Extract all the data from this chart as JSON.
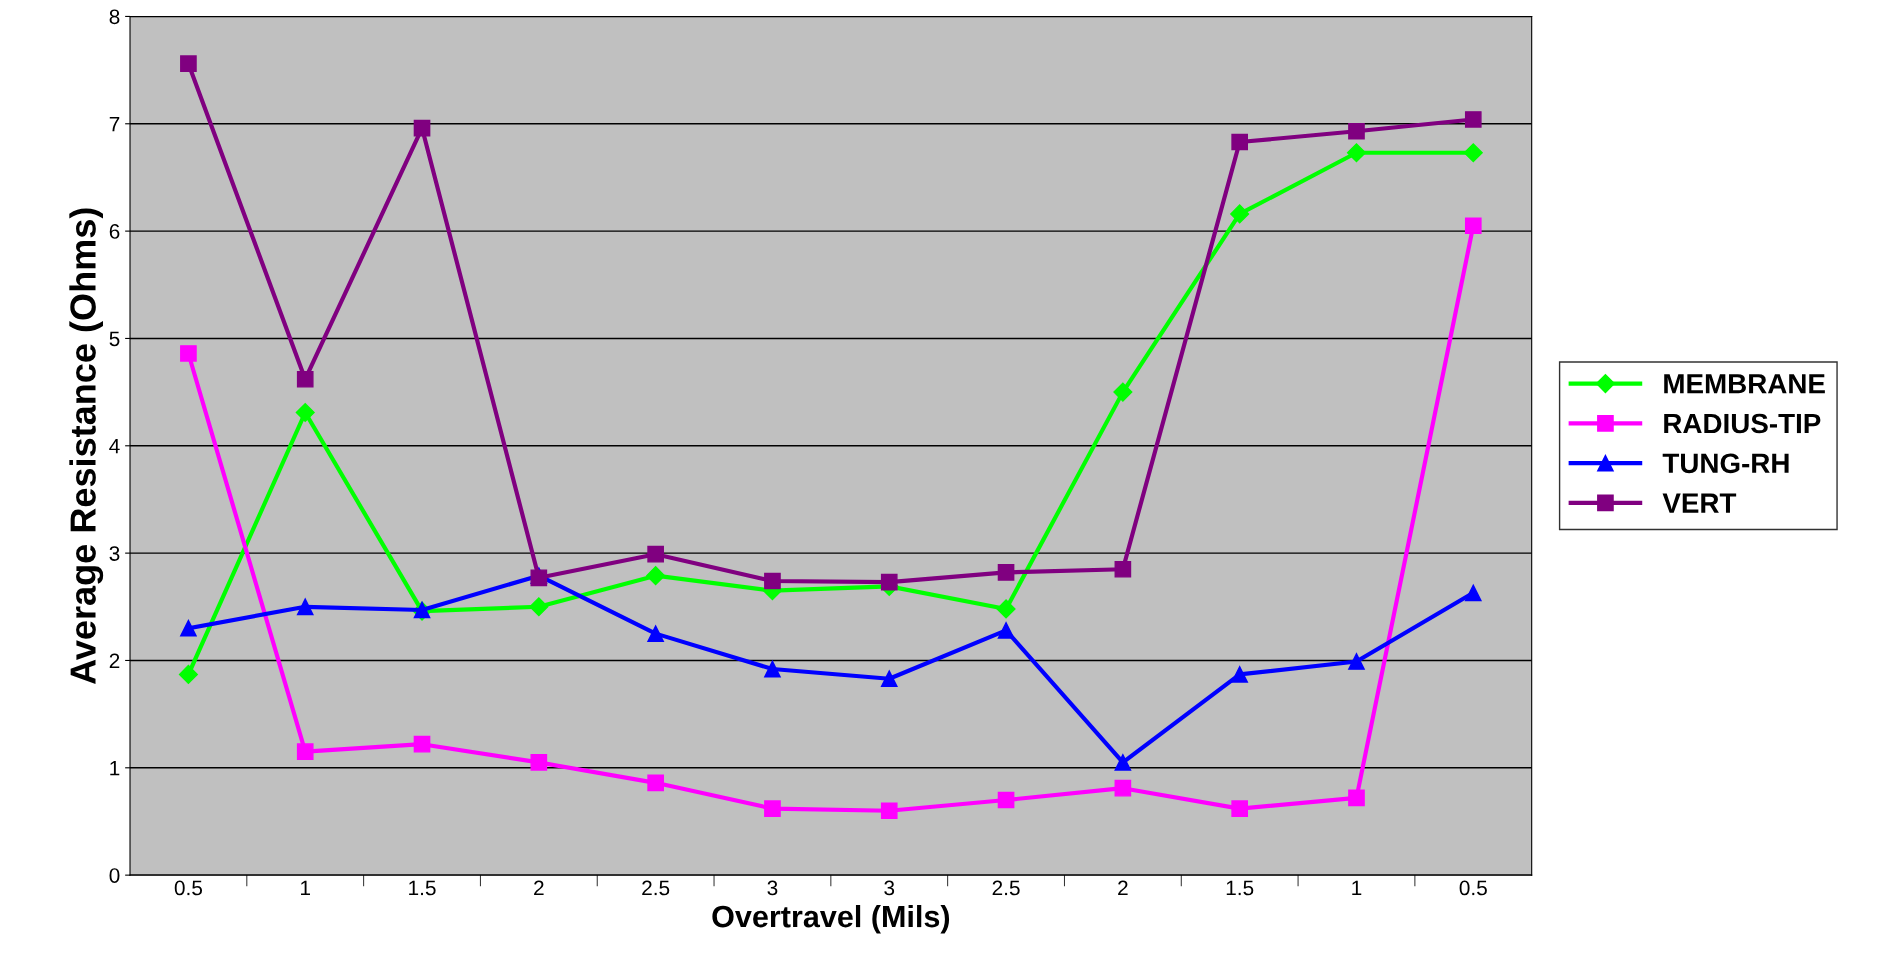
{
  "chart_data": {
    "type": "line",
    "xlabel": "Overtravel (Mils)",
    "ylabel": "Average Resistance (Ohms)",
    "categories": [
      "0.5",
      "1",
      "1.5",
      "2",
      "2.5",
      "3",
      "3",
      "2.5",
      "2",
      "1.5",
      "1",
      "0.5"
    ],
    "ylim": [
      0,
      8
    ],
    "yticks": [
      0,
      1,
      2,
      3,
      4,
      5,
      6,
      7,
      8
    ],
    "grid": "y",
    "legend": "right",
    "line_style": "solid",
    "series": [
      {
        "name": "MEMBRANE",
        "color": "#00ff00",
        "marker": "diamond",
        "values": [
          1.87,
          4.31,
          2.46,
          2.5,
          2.79,
          2.65,
          2.69,
          2.48,
          4.5,
          6.16,
          6.73,
          6.73
        ]
      },
      {
        "name": "RADIUS-TIP",
        "color": "#ff00ff",
        "marker": "square",
        "values": [
          4.86,
          1.15,
          1.22,
          1.05,
          0.86,
          0.62,
          0.6,
          0.7,
          0.81,
          0.62,
          0.72,
          6.05
        ]
      },
      {
        "name": "TUNG-RH",
        "color": "#0000ff",
        "marker": "triangle",
        "values": [
          2.3,
          2.5,
          2.47,
          2.79,
          2.25,
          1.92,
          1.83,
          2.28,
          1.05,
          1.87,
          1.99,
          2.63
        ]
      },
      {
        "name": "VERT",
        "color": "#800080",
        "marker": "square",
        "values": [
          7.56,
          4.62,
          6.96,
          2.77,
          2.99,
          2.74,
          2.73,
          2.82,
          2.85,
          6.83,
          6.93,
          7.04
        ]
      }
    ]
  }
}
